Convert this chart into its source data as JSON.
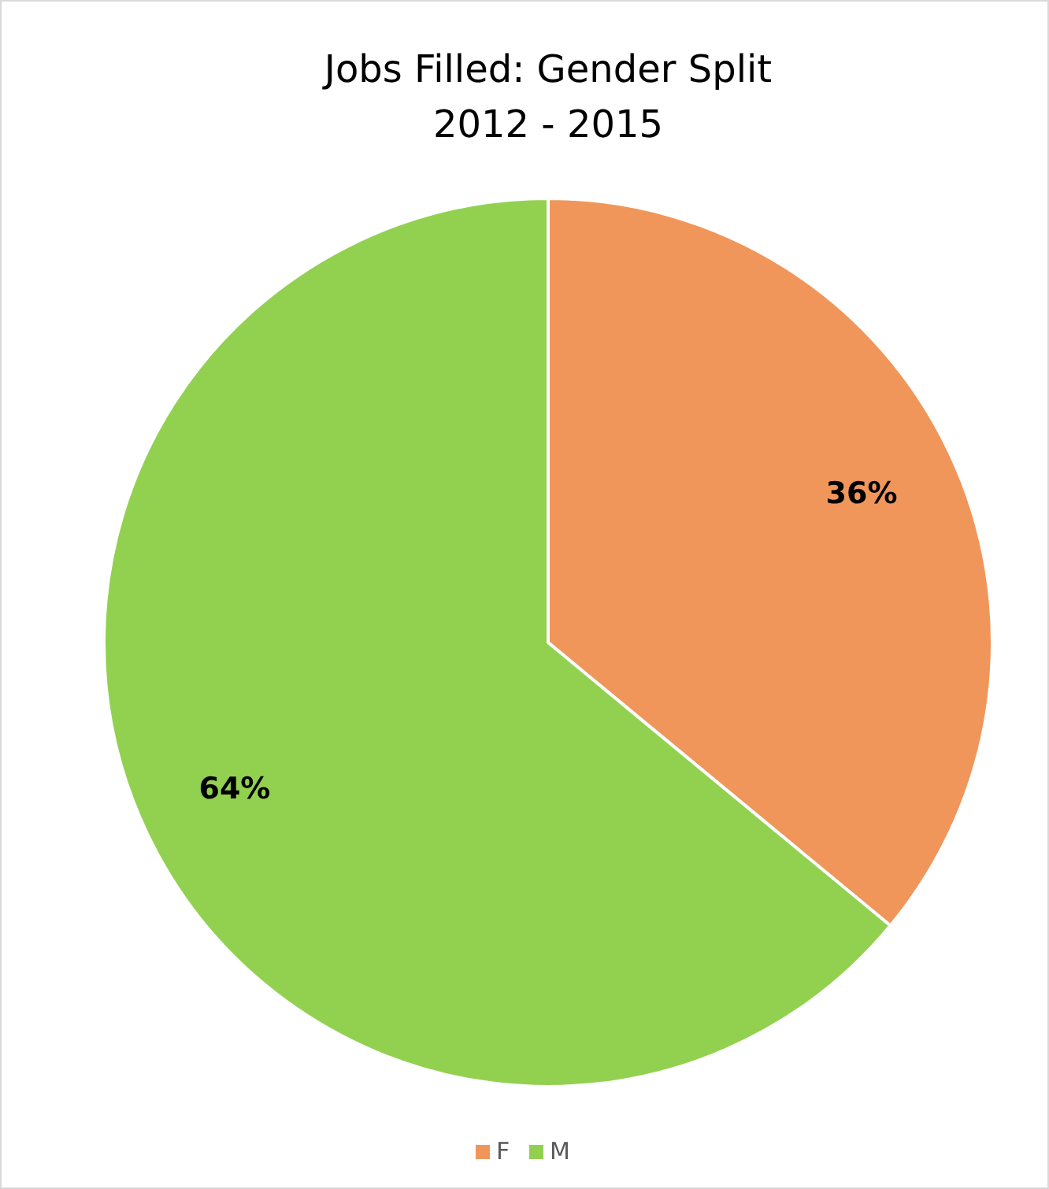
{
  "chart_data": {
    "type": "pie",
    "title": "Jobs Filled: Gender Split",
    "subtitle": "2012 - 2015",
    "categories": [
      "F",
      "M"
    ],
    "values": [
      36,
      64
    ],
    "colors": [
      "#f0965a",
      "#92d150"
    ],
    "value_labels": [
      "36%",
      "64%"
    ],
    "legend": "bottom"
  }
}
